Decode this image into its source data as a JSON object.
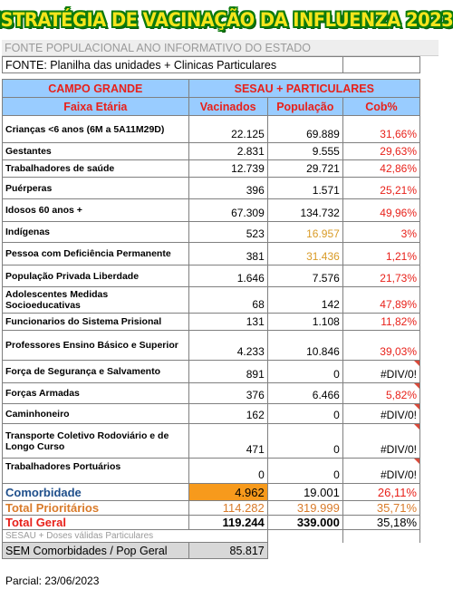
{
  "title": "ESTRATÉGIA DE VACINAÇÃO DA INFLUENZA 2023",
  "fonte_populacional": "FONTE POPULACIONAL ANO INFORMATIVO DO ESTADO",
  "fonte": "FONTE: Planilha das unidades + Clinicas Particulares",
  "header": {
    "city": "CAMPO GRANDE",
    "source": "SESAU + PARTICULARES",
    "col_faixa": "Faixa Etária",
    "col_vacinados": "Vacinados",
    "col_populacao": "População",
    "col_cob": "Cob%"
  },
  "rows": [
    {
      "label": "Crianças <6 anos  (6M a 5A11M29D)",
      "vacinados": "22.125",
      "populacao": "69.889",
      "cob": "31,66%"
    },
    {
      "label": "Gestantes",
      "vacinados": "2.831",
      "populacao": "9.555",
      "cob": "29,63%"
    },
    {
      "label": "Trabalhadores de saúde",
      "vacinados": "12.739",
      "populacao": "29.721",
      "cob": "42,86%"
    },
    {
      "label": "Puérperas",
      "vacinados": "396",
      "populacao": "1.571",
      "cob": "25,21%"
    },
    {
      "label": "Idosos 60 anos +",
      "vacinados": "67.309",
      "populacao": "134.732",
      "cob": "49,96%"
    },
    {
      "label": "Indígenas",
      "vacinados": "523",
      "populacao": "16.957",
      "cob": "3%"
    },
    {
      "label": "Pessoa com Deficiência Permanente",
      "vacinados": "381",
      "populacao": "31.436",
      "cob": "1,21%"
    },
    {
      "label": "População Privada Liberdade",
      "vacinados": "1.646",
      "populacao": "7.576",
      "cob": "21,73%"
    },
    {
      "label": "Adolescentes Medidas Socioeducativas",
      "vacinados": "68",
      "populacao": "142",
      "cob": "47,89%"
    },
    {
      "label": "Funcionarios do Sistema Prisional",
      "vacinados": "131",
      "populacao": "1.108",
      "cob": "11,82%"
    },
    {
      "label": "Professores Ensino Básico e Superior",
      "vacinados": "4.233",
      "populacao": "10.846",
      "cob": "39,03%"
    },
    {
      "label": "Força de Segurança e Salvamento",
      "vacinados": "891",
      "populacao": "0",
      "cob": "#DIV/0!"
    },
    {
      "label": "Forças Armadas",
      "vacinados": "376",
      "populacao": "6.466",
      "cob": "5,82%"
    },
    {
      "label": "Caminhoneiro",
      "vacinados": "162",
      "populacao": "0",
      "cob": "#DIV/0!"
    },
    {
      "label": "Transporte Coletivo Rodoviário e de Longo Curso",
      "vacinados": "471",
      "populacao": "0",
      "cob": "#DIV/0!"
    },
    {
      "label": "Trabalhadores Portuários",
      "vacinados": "0",
      "populacao": "0",
      "cob": "#DIV/0!"
    }
  ],
  "comorbidade": {
    "label": "Comorbidade",
    "vacinados": "4.962",
    "populacao": "19.001",
    "cob": "26,11%"
  },
  "total_prioritarios": {
    "label": "Total Prioritários",
    "vacinados": "114.282",
    "populacao": "319.999",
    "cob": "35,71%"
  },
  "total_geral": {
    "label": "Total Geral",
    "vacinados": "119.244",
    "populacao": "339.000",
    "cob": "35,18%"
  },
  "sesau_note": "SESAU + Doses válidas Particulares",
  "sem_comorbidades": {
    "label": "SEM Comorbidades / Pop Geral",
    "value": "85.817"
  },
  "parcial": "Parcial: 23/06/2023",
  "colors": {
    "header_bg": "#99ccff",
    "red": "#e8211a",
    "orange_cell": "#f79a1c",
    "title_fill": "#f5e51c",
    "title_outline": "#0d7a0d"
  }
}
